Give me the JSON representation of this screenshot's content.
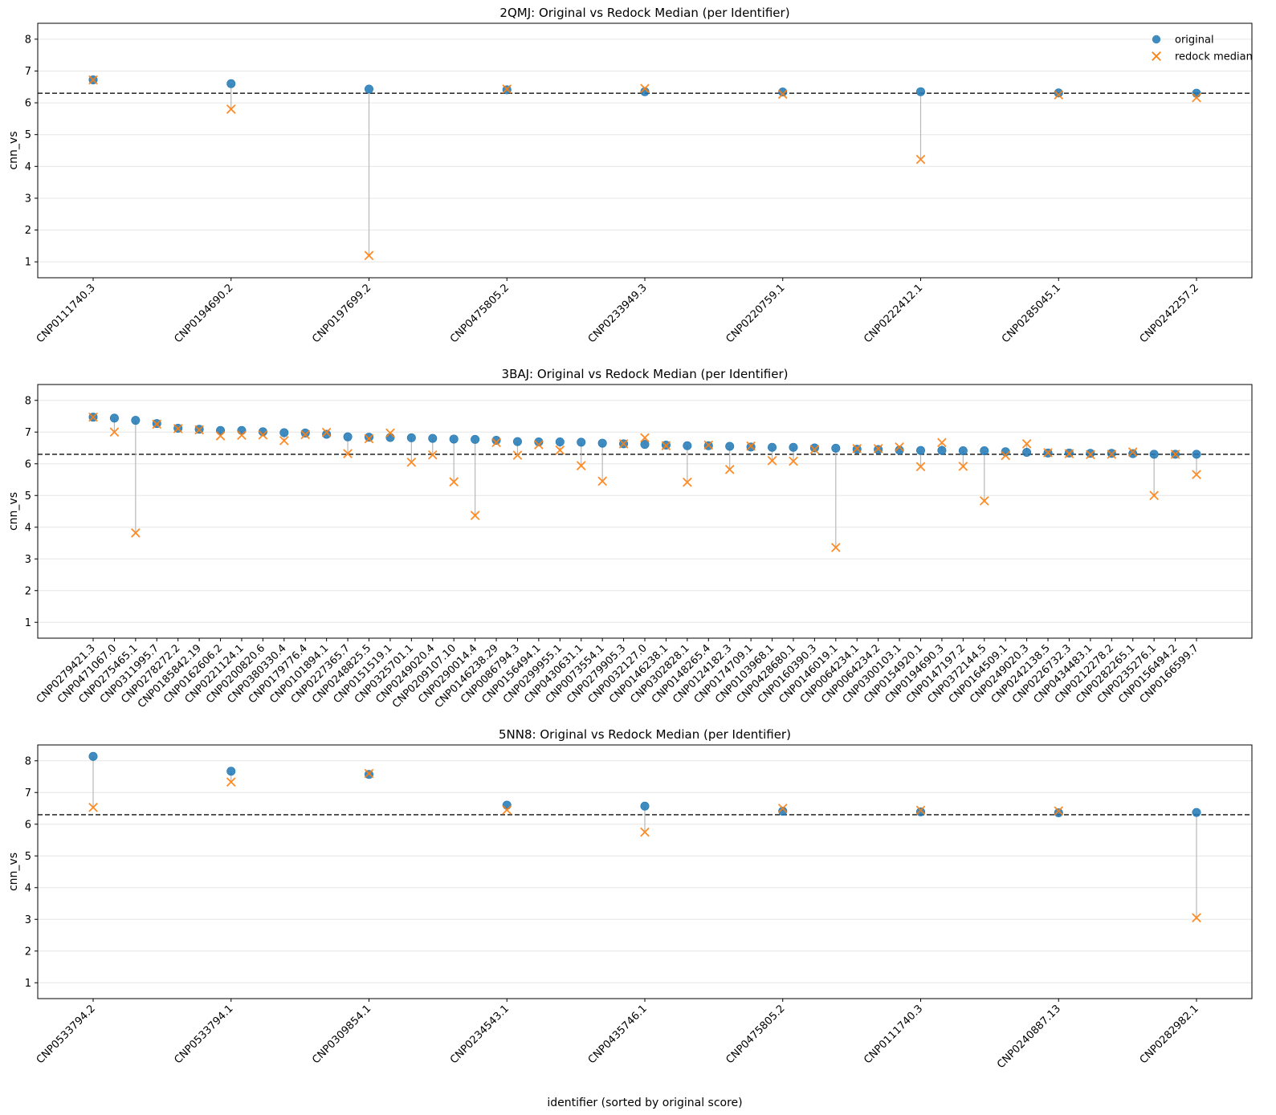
{
  "chart_data": [
    {
      "type": "scatter",
      "title": "2QMJ: Original vs Redock Median (per Identifier)",
      "ylabel": "cnn_vs",
      "xlabel": "",
      "ylim": [
        0.5,
        8.5
      ],
      "yticks": [
        1,
        2,
        3,
        4,
        5,
        6,
        7,
        8
      ],
      "threshold": 6.3,
      "grid": "y",
      "legend": {
        "placement": "top-right",
        "entries": [
          "original",
          "redock median"
        ]
      },
      "categories": [
        "CNP0111740.3",
        "CNP0194690.2",
        "CNP0197699.2",
        "CNP0475805.2",
        "CNP0233949.3",
        "CNP0220759.1",
        "CNP0222412.1",
        "CNP0285045.1",
        "CNP0242257.2"
      ],
      "series": [
        {
          "name": "original",
          "values": [
            6.72,
            6.6,
            6.43,
            6.41,
            6.35,
            6.34,
            6.35,
            6.31,
            6.3
          ]
        },
        {
          "name": "redock median",
          "values": [
            6.72,
            5.8,
            1.2,
            6.43,
            6.45,
            6.27,
            4.22,
            6.25,
            6.16
          ]
        }
      ]
    },
    {
      "type": "scatter",
      "title": "3BAJ: Original vs Redock Median (per Identifier)",
      "ylabel": "cnn_vs",
      "xlabel": "",
      "ylim": [
        0.5,
        8.5
      ],
      "yticks": [
        1,
        2,
        3,
        4,
        5,
        6,
        7,
        8
      ],
      "threshold": 6.3,
      "grid": "y",
      "categories": [
        "CNP0279421.3",
        "CNP0471067.0",
        "CNP0275465.1",
        "CNP0311995.7",
        "CNP0278272.2",
        "CNP0185842.19",
        "CNP0162606.2",
        "CNP0221124.1",
        "CNP0200820.6",
        "CNP0380330.4",
        "CNP0179776.4",
        "CNP0101894.1",
        "CNP0227365.7",
        "CNP0248825.5",
        "CNP0151519.1",
        "CNP0325701.1",
        "CNP0249020.4",
        "CNP0209107.10",
        "CNP0290014.4",
        "CNP0146238.29",
        "CNP0086794.3",
        "CNP0156494.1",
        "CNP0299955.1",
        "CNP0430631.1",
        "CNP0073554.1",
        "CNP0279905.3",
        "CNP0032127.0",
        "CNP0146238.1",
        "CNP0302828.1",
        "CNP0148265.4",
        "CNP0124182.3",
        "CNP0174709.1",
        "CNP0103968.1",
        "CNP0428680.1",
        "CNP0160390.3",
        "CNP0146019.1",
        "CNP0064234.1",
        "CNP0064234.2",
        "CNP0300103.1",
        "CNP0154920.1",
        "CNP0194690.3",
        "CNP0147197.2",
        "CNP0372144.5",
        "CNP0164509.1",
        "CNP0249020.3",
        "CNP0242138.5",
        "CNP0226732.3",
        "CNP0434483.1",
        "CNP0212278.2",
        "CNP0282265.1",
        "CNP0235276.1",
        "CNP0156494.2",
        "CNP0166599.7"
      ],
      "series": [
        {
          "name": "original",
          "values": [
            7.47,
            7.44,
            7.37,
            7.27,
            7.12,
            7.09,
            7.05,
            7.05,
            7.01,
            6.98,
            6.97,
            6.93,
            6.85,
            6.84,
            6.83,
            6.82,
            6.8,
            6.78,
            6.77,
            6.74,
            6.7,
            6.69,
            6.69,
            6.68,
            6.65,
            6.63,
            6.61,
            6.59,
            6.57,
            6.57,
            6.55,
            6.53,
            6.52,
            6.52,
            6.5,
            6.49,
            6.46,
            6.45,
            6.43,
            6.42,
            6.42,
            6.41,
            6.41,
            6.38,
            6.36,
            6.34,
            6.34,
            6.33,
            6.33,
            6.32,
            6.3,
            6.3,
            6.3
          ]
        },
        {
          "name": "redock median",
          "values": [
            7.47,
            7.0,
            3.82,
            7.25,
            7.11,
            7.07,
            6.88,
            6.9,
            6.91,
            6.73,
            6.92,
            6.99,
            6.32,
            6.79,
            6.97,
            6.05,
            6.28,
            5.43,
            4.37,
            6.67,
            6.27,
            6.6,
            6.43,
            5.94,
            5.45,
            6.63,
            6.82,
            6.57,
            5.42,
            6.59,
            5.82,
            6.56,
            6.1,
            6.08,
            6.45,
            3.36,
            6.48,
            6.48,
            6.53,
            5.91,
            6.67,
            5.92,
            4.83,
            6.26,
            6.63,
            6.35,
            6.32,
            6.29,
            6.3,
            6.37,
            5.0,
            6.3,
            5.66
          ]
        }
      ]
    },
    {
      "type": "scatter",
      "title": "5NN8: Original vs Redock Median (per Identifier)",
      "ylabel": "cnn_vs",
      "xlabel": "identifier (sorted by original score)",
      "ylim": [
        0.5,
        8.5
      ],
      "yticks": [
        1,
        2,
        3,
        4,
        5,
        6,
        7,
        8
      ],
      "threshold": 6.3,
      "grid": "y",
      "categories": [
        "CNP0533794.2",
        "CNP0533794.1",
        "CNP0309854.1",
        "CNP0234543.1",
        "CNP0435746.1",
        "CNP0475805.2",
        "CNP0111740.3",
        "CNP0240887.13",
        "CNP0282982.1"
      ],
      "series": [
        {
          "name": "original",
          "values": [
            8.14,
            7.67,
            7.57,
            6.6,
            6.57,
            6.41,
            6.39,
            6.36,
            6.37
          ]
        },
        {
          "name": "redock median",
          "values": [
            6.53,
            7.33,
            7.6,
            6.45,
            5.75,
            6.5,
            6.44,
            6.42,
            3.05
          ]
        }
      ]
    }
  ],
  "colors": {
    "original": "#1f77b4",
    "redock": "#ff7f0e",
    "connector": "#b8b8b8",
    "threshold": "#333333",
    "grid": "#e6e6e6"
  }
}
